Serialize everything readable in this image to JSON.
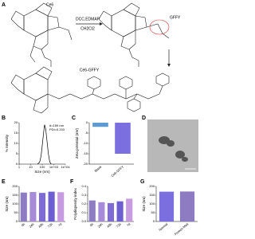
{
  "figure": {
    "panels": [
      "A",
      "B",
      "C",
      "D",
      "E",
      "F",
      "G"
    ],
    "reaction": {
      "reactant": "Ce6",
      "reagents": "DCC,EDMAP",
      "solvent": "CH2Cl2",
      "peptide": "GFFY",
      "product": "Ce6-GFFY"
    }
  },
  "chart_data": [
    {
      "type": "line",
      "x_label": "Size (nm)",
      "y_label": "% Intensity",
      "log_x": true,
      "x": [
        40,
        60,
        80,
        100,
        130,
        159,
        200,
        260,
        340,
        450,
        600
      ],
      "values": [
        0,
        1,
        4,
        9,
        15,
        19,
        17,
        11,
        5,
        1,
        0
      ],
      "color": "#000000",
      "xlim": [
        1,
        10000
      ],
      "xticks": [
        1,
        10,
        100,
        {
          "value": 1000,
          "label": "1e+03"
        },
        {
          "value": 10000,
          "label": "1e+04"
        }
      ],
      "ylim": [
        0,
        20
      ],
      "yticks": [
        0,
        5,
        10,
        15,
        20
      ],
      "annotation": [
        "d=159 nm",
        "PDI=0.203"
      ]
    },
    {
      "type": "bar",
      "y_label": "Zeta potential (mV)",
      "categories": [
        "Blank",
        "Ce6-GFFY"
      ],
      "values": [
        -2,
        -15
      ],
      "colors": [
        "#5b9bd5",
        "#7b6fe0"
      ],
      "ylim": [
        -20,
        0
      ],
      "yticks": [
        -20,
        -15,
        -10,
        -5,
        0
      ]
    },
    {
      "type": "bar",
      "y_label": "Size (nm)",
      "categories": [
        "0h",
        "24h",
        "48h",
        "72h",
        "7d"
      ],
      "values": [
        165,
        168,
        163,
        170,
        167
      ],
      "colors": [
        "#8e7cc3",
        "#a78bd9",
        "#7e6bd6",
        "#6d5ed1",
        "#c79be0"
      ],
      "ylim": [
        0,
        200
      ],
      "yticks": [
        0,
        50,
        100,
        150,
        200
      ]
    },
    {
      "type": "bar",
      "y_label": "Polydispersity index",
      "categories": [
        "0h",
        "24h",
        "48h",
        "72h",
        "7d"
      ],
      "values": [
        0.24,
        0.22,
        0.21,
        0.23,
        0.26
      ],
      "colors": [
        "#8e7cc3",
        "#a78bd9",
        "#7e6bd6",
        "#6d5ed1",
        "#c79be0"
      ],
      "ylim": [
        0,
        0.4
      ],
      "yticks": [
        {
          "value": 0,
          "label": "0.0"
        },
        0.1,
        0.2,
        0.3,
        0.4
      ]
    },
    {
      "type": "bar",
      "y_label": "Size (nm)",
      "categories": [
        "Normal",
        "Freeze-Melt"
      ],
      "values": [
        170,
        171
      ],
      "colors": [
        "#7b6fe0",
        "#8e7cc3"
      ],
      "ylim": [
        0,
        200
      ],
      "yticks": [
        0,
        50,
        100,
        150,
        200
      ]
    }
  ]
}
